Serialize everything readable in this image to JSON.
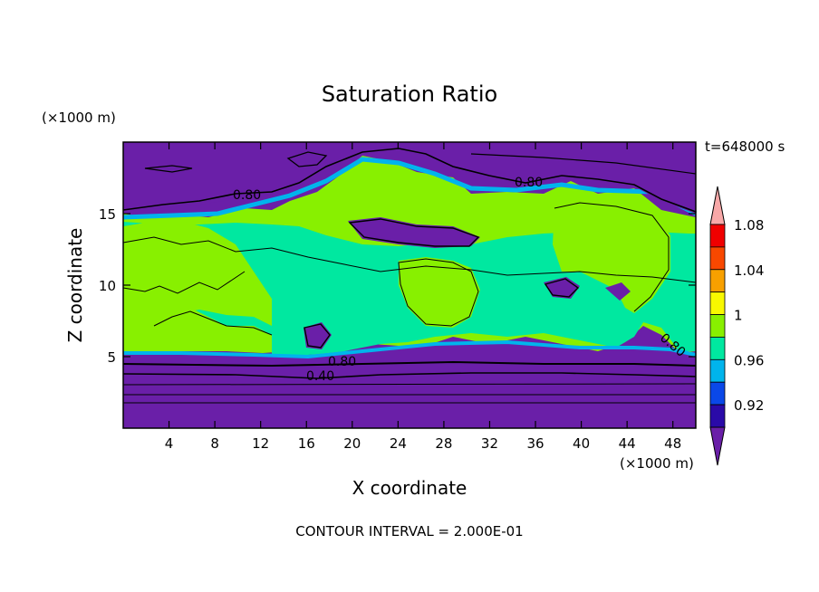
{
  "chart_data": {
    "type": "heatmap",
    "title": "Saturation Ratio",
    "time_label": "t=648000 s",
    "xlabel": "X coordinate",
    "ylabel": "Z coordinate",
    "x_unit": "(×1000 m)",
    "y_unit": "(×1000 m)",
    "xlim": [
      0,
      50
    ],
    "ylim": [
      0,
      20
    ],
    "x_ticks": [
      4,
      8,
      12,
      16,
      20,
      24,
      28,
      32,
      36,
      40,
      44,
      48
    ],
    "y_ticks": [
      5,
      10,
      15
    ],
    "footer": "CONTOUR INTERVAL = 2.000E-01",
    "grid": false,
    "colorbar": {
      "levels": [
        "0.92",
        "0.96",
        "1",
        "1.04",
        "1.08"
      ],
      "colors": [
        "#6a1fa8",
        "#2a0aa8",
        "#0a48e8",
        "#00b4ec",
        "#00e8a0",
        "#88f000",
        "#f8f800",
        "#f8a000",
        "#f84800",
        "#f00000",
        "#f8a8a8"
      ]
    },
    "contour_labels": [
      {
        "text": "0.80",
        "x": 8.9,
        "z": 16.0
      },
      {
        "text": "0.80",
        "x": 27.6,
        "z": 17.3
      },
      {
        "text": "0.80",
        "x": 18.5,
        "z": 4.7
      },
      {
        "text": "0.40",
        "x": 16.3,
        "z": 3.5
      },
      {
        "text": "0.80",
        "x": 47.0,
        "z": 5.8
      }
    ]
  }
}
